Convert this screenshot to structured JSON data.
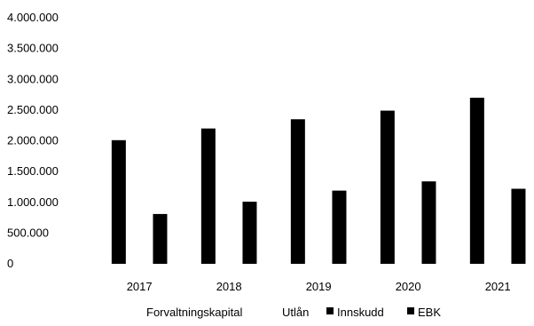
{
  "chart_data": {
    "type": "bar",
    "title": "",
    "xlabel": "",
    "ylabel": "",
    "categories": [
      "2017",
      "2018",
      "2019",
      "2020",
      "2021"
    ],
    "series": [
      {
        "name": "Forvaltningskapital",
        "color": "#ffffff",
        "values": [
          null,
          null,
          null,
          null,
          null
        ]
      },
      {
        "name": "Utlån",
        "color": "#ffffff",
        "values": [
          null,
          null,
          null,
          null,
          null
        ]
      },
      {
        "name": "Innskudd",
        "color": "#000000",
        "values": [
          2010000,
          2200000,
          2350000,
          2490000,
          2700000
        ]
      },
      {
        "name": "EBK",
        "color": "#000000",
        "values": [
          810000,
          1010000,
          1190000,
          1340000,
          1220000
        ]
      }
    ],
    "ylim": [
      0,
      4000000
    ],
    "yticks": [
      0,
      500000,
      1000000,
      1500000,
      2000000,
      2500000,
      3000000,
      3500000,
      4000000
    ],
    "ytick_labels": [
      "0",
      "500.000",
      "1.000.000",
      "1.500.000",
      "2.000.000",
      "2.500.000",
      "3.000.000",
      "3.500.000",
      "4.000.000"
    ],
    "grid": false,
    "legend_position": "bottom"
  }
}
